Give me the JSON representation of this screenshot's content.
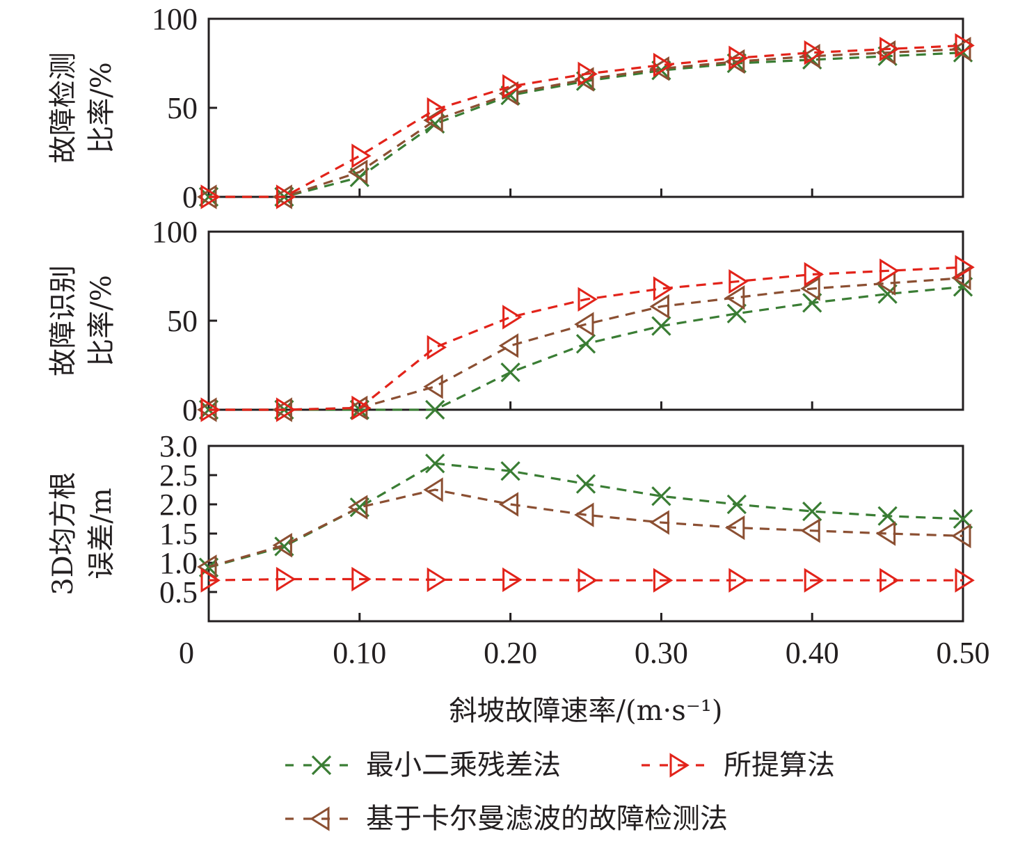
{
  "chart_data": {
    "type": "line",
    "xlabel": "斜坡故障速率/(m·s⁻¹)",
    "x": [
      0,
      0.05,
      0.1,
      0.15,
      0.2,
      0.25,
      0.3,
      0.35,
      0.4,
      0.45,
      0.5
    ],
    "xlim": [
      0,
      0.5
    ],
    "xticks": [
      0,
      0.1,
      0.2,
      0.3,
      0.4,
      0.5
    ],
    "xtick_labels": [
      "0",
      "0.10",
      "0.20",
      "0.30",
      "0.40",
      "0.50"
    ],
    "legend": {
      "placement": "bottom",
      "entries": [
        {
          "key": "ls",
          "label": "最小二乘残差法",
          "marker": "x",
          "color": "#3a7d34"
        },
        {
          "key": "proposed",
          "label": "所提算法",
          "marker": "triangle-right",
          "color": "#e2231a"
        },
        {
          "key": "kalman",
          "label": "基于卡尔曼滤波的故障检测法",
          "marker": "triangle-left",
          "color": "#8b4f32"
        }
      ]
    },
    "panels": [
      {
        "ylabel_lines": [
          "故障检测",
          "比率/%"
        ],
        "ylim": [
          0,
          100
        ],
        "yticks": [
          0,
          50,
          100
        ],
        "ytick_labels": [
          "0",
          "50",
          "100"
        ],
        "series": [
          {
            "key": "ls",
            "name": "最小二乘残差法",
            "values": [
              0,
              0,
              11,
              41,
              57,
              65,
              71,
              75,
              77,
              79,
              81
            ]
          },
          {
            "key": "kalman",
            "name": "基于卡尔曼滤波的故障检测法",
            "values": [
              0,
              0,
              14,
              43,
              58,
              66,
              72,
              76,
              79,
              81,
              83
            ]
          },
          {
            "key": "proposed",
            "name": "所提算法",
            "values": [
              0,
              0,
              23,
              49,
              62,
              69,
              74,
              78,
              81,
              83,
              85
            ]
          }
        ]
      },
      {
        "ylabel_lines": [
          "故障识别",
          "比率/%"
        ],
        "ylim": [
          0,
          100
        ],
        "yticks": [
          0,
          50,
          100
        ],
        "ytick_labels": [
          "0",
          "50",
          "100"
        ],
        "series": [
          {
            "key": "ls",
            "name": "最小二乘残差法",
            "values": [
              0,
              0,
              0,
              0,
              21,
              37,
              47,
              54,
              60,
              65,
              69
            ]
          },
          {
            "key": "kalman",
            "name": "基于卡尔曼滤波的故障检测法",
            "values": [
              0,
              0,
              1,
              13,
              36,
              48,
              58,
              63,
              68,
              71,
              74
            ]
          },
          {
            "key": "proposed",
            "name": "所提算法",
            "values": [
              0,
              0,
              1,
              35,
              52,
              62,
              68,
              72,
              76,
              78,
              80
            ]
          }
        ]
      },
      {
        "ylabel_lines": [
          "3D均方根",
          "误差/m"
        ],
        "ylim": [
          0,
          3.0
        ],
        "yticks": [
          0.5,
          1.0,
          1.5,
          2.0,
          2.5,
          3.0
        ],
        "ytick_labels": [
          "0.5",
          "1.0",
          "1.5",
          "2.0",
          "2.5",
          "3.0"
        ],
        "series": [
          {
            "key": "ls",
            "name": "最小二乘残差法",
            "values": [
              0.92,
              1.28,
              1.95,
              2.7,
              2.57,
              2.35,
              2.14,
              2.0,
              1.88,
              1.8,
              1.75
            ]
          },
          {
            "key": "kalman",
            "name": "基于卡尔曼滤波的故障检测法",
            "values": [
              0.93,
              1.3,
              1.95,
              2.25,
              2.0,
              1.82,
              1.69,
              1.6,
              1.55,
              1.5,
              1.46
            ]
          },
          {
            "key": "proposed",
            "name": "所提算法",
            "values": [
              0.7,
              0.72,
              0.72,
              0.71,
              0.71,
              0.7,
              0.7,
              0.7,
              0.7,
              0.7,
              0.7
            ]
          }
        ]
      }
    ]
  }
}
